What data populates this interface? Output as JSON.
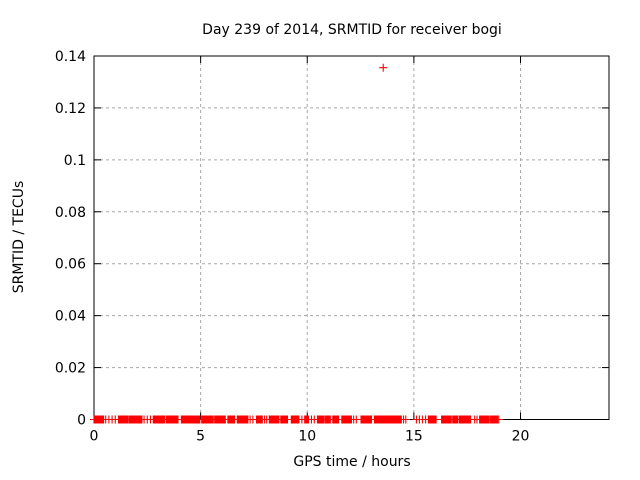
{
  "window": {
    "background": "#ffffff"
  },
  "chart_data": {
    "type": "scatter",
    "title": "Day 239 of 2014, SRMTID for receiver bogi",
    "xlabel": "GPS time / hours",
    "ylabel": "SRMTID / TECUs",
    "xlim": [
      0,
      24.15
    ],
    "ylim": [
      0,
      0.14
    ],
    "xticks": [
      {
        "value": 0,
        "label": "0"
      },
      {
        "value": 5,
        "label": "5"
      },
      {
        "value": 10,
        "label": "10"
      },
      {
        "value": 15,
        "label": "15"
      },
      {
        "value": 20,
        "label": "20"
      }
    ],
    "yticks": [
      {
        "value": 0,
        "label": "0"
      },
      {
        "value": 0.02,
        "label": "0.02"
      },
      {
        "value": 0.04,
        "label": "0.04"
      },
      {
        "value": 0.06,
        "label": "0.06"
      },
      {
        "value": 0.08,
        "label": "0.08"
      },
      {
        "value": 0.1,
        "label": "0.1"
      },
      {
        "value": 0.12,
        "label": "0.12"
      },
      {
        "value": 0.14,
        "label": "0.14"
      }
    ],
    "grid": {
      "show": true,
      "style": "dashed",
      "color": "#a8a8a8"
    },
    "legend": "none",
    "border_color": "#000000",
    "series": [
      {
        "name": "SRMTID",
        "marker": "plus",
        "color": "#ff0000",
        "points": [
          {
            "x": 13.56,
            "y": 0.1355
          }
        ],
        "zero_band": {
          "y": 0,
          "segments": [
            [
              0.0,
              0.45
            ],
            [
              1.15,
              1.6
            ],
            [
              1.66,
              2.25
            ],
            [
              2.78,
              3.35
            ],
            [
              3.4,
              3.95
            ],
            [
              4.1,
              4.55
            ],
            [
              4.6,
              4.97
            ],
            [
              5.05,
              5.6
            ],
            [
              5.66,
              6.18
            ],
            [
              6.28,
              6.6
            ],
            [
              6.72,
              7.25
            ],
            [
              7.62,
              7.92
            ],
            [
              8.22,
              8.7
            ],
            [
              8.76,
              9.1
            ],
            [
              9.25,
              9.65
            ],
            [
              9.88,
              10.1
            ],
            [
              10.48,
              10.8
            ],
            [
              10.86,
              11.05
            ],
            [
              11.2,
              11.5
            ],
            [
              11.62,
              12.08
            ],
            [
              12.52,
              13.05
            ],
            [
              13.15,
              14.45
            ],
            [
              15.68,
              16.05
            ],
            [
              16.3,
              16.76
            ],
            [
              16.82,
              17.05
            ],
            [
              17.12,
              17.7
            ],
            [
              18.08,
              18.55
            ],
            [
              18.6,
              18.92
            ]
          ],
          "sparse_x": [
            0.55,
            0.7,
            0.85,
            1.0,
            2.35,
            2.5,
            2.65,
            7.32,
            7.45,
            8.0,
            8.1,
            9.75,
            10.2,
            10.33,
            11.1,
            12.18,
            12.3,
            14.52,
            14.62,
            15.12,
            15.26,
            15.4,
            15.55,
            17.85,
            17.96,
            18.98
          ],
          "marker_step_hours": 0.045
        }
      }
    ]
  }
}
